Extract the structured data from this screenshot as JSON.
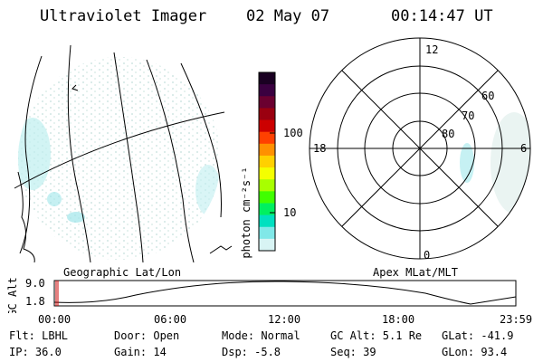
{
  "header": {
    "instrument": "Ultraviolet Imager",
    "date": "02 May 07",
    "time": "00:14:47 UT"
  },
  "colorbar": {
    "unit_label": "photon cm⁻²s⁻¹",
    "ticks": [
      {
        "label": "100",
        "value": 100
      },
      {
        "label": "10",
        "value": 10
      }
    ],
    "colors": [
      "#1a0022",
      "#3a0040",
      "#6a0030",
      "#9a0010",
      "#cc0000",
      "#ff4000",
      "#ff9000",
      "#ffd000",
      "#f4ff00",
      "#a8ff00",
      "#40ff00",
      "#00f060",
      "#00e0c0",
      "#80e8e8",
      "#d8f4f4"
    ]
  },
  "geo_panel": {
    "label": "Geographic Lat/Lon"
  },
  "polar_panel": {
    "label": "Apex MLat/MLT",
    "mlt_labels": {
      "top": "12",
      "bottom": "0",
      "left": "18",
      "right": "6"
    },
    "mlat_labels": [
      "60",
      "70",
      "80"
    ]
  },
  "altitude_plot": {
    "ylabel": "GC Alt",
    "y_ticks": [
      "9.0",
      "1.8"
    ],
    "x_ticks": [
      "00:00",
      "06:00",
      "12:00",
      "18:00",
      "23:59"
    ]
  },
  "info": {
    "flt": "Flt: LBHL",
    "ip": "IP: 36.0",
    "door": "Door: Open",
    "gain": "Gain: 14",
    "mode": "Mode: Normal",
    "dsp": "Dsp:   -5.8",
    "gcalt": "GC Alt: 5.1 Re",
    "seq": "Seq: 39",
    "glat": "GLat: -41.9",
    "glon": "GLon:  93.4"
  }
}
